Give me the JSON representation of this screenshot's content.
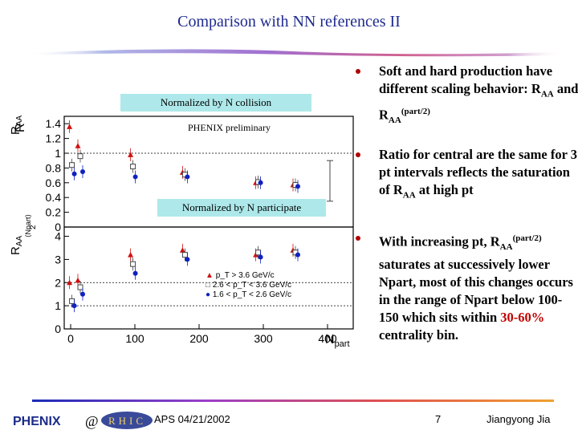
{
  "slide": {
    "title": "Comparison with NN references II",
    "footer_date": "APS 04/21/2002",
    "footer_page": "7",
    "footer_author": "Jiangyong Jia",
    "logo_text": "PHENIX",
    "logo_at": "@",
    "logo_rhic": "RHIC"
  },
  "bullets": [
    {
      "parts": [
        "Soft and hard production have different scaling behavior: R",
        "AA",
        " and R",
        "AA",
        "(part/2)"
      ]
    },
    {
      "parts": [
        "Ratio for central are the same for 3 pt intervals reflects the saturation of  R",
        "AA",
        " at high pt"
      ]
    },
    {
      "parts": [
        "With increasing pt, R",
        "AA",
        "(part/2)",
        " saturates at successively lower Npart, most of this changes occurs in the range of Npart below 100-150 which sits within ",
        "30-60%",
        " centrality bin."
      ]
    }
  ],
  "figure": {
    "label_top": "Normalized by N collision",
    "label_bottom": "Normalized by N participate",
    "preliminary": "PHENIX preliminary",
    "ylabel_top": "R",
    "ylabel_top_sub": "AA",
    "ylabel_bottom": "R",
    "ylabel_bottom_sub": "AA",
    "ylabel_bottom_frac_num": "⟨Npart⟩",
    "ylabel_bottom_frac_den": "2",
    "xlabel": "N",
    "xlabel_sub": "part",
    "legend": [
      {
        "text": "p_T > 3.6 GeV/c"
      },
      {
        "text": "2.6 < p_T < 3.6 GeV/c"
      },
      {
        "text": "1.6 < p_T < 2.6 GeV/c"
      }
    ],
    "colors": {
      "high": "#d01010",
      "mid": "#444444",
      "low": "#1020c0"
    }
  },
  "chart_data": [
    {
      "type": "scatter",
      "title": "",
      "xlabel": "N part",
      "ylabel": "RAA",
      "xlim": [
        -10,
        440
      ],
      "ylim": [
        0,
        1.5
      ],
      "yticks": [
        0,
        0.2,
        0.4,
        0.6,
        0.8,
        1,
        1.2,
        1.4
      ],
      "series": [
        {
          "name": "p_T > 3.6 GeV/c",
          "marker": "triangle",
          "x": [
            2,
            15,
            97,
            178,
            292,
            350
          ],
          "y": [
            1.36,
            1.1,
            0.98,
            0.74,
            0.6,
            0.57
          ]
        },
        {
          "name": "2.6 < p_T < 3.6 GeV/c",
          "marker": "square",
          "x": [
            2,
            15,
            97,
            178,
            292,
            350
          ],
          "y": [
            0.84,
            0.96,
            0.82,
            0.71,
            0.61,
            0.57
          ]
        },
        {
          "name": "1.6 < p_T < 2.6 GeV/c",
          "marker": "circle",
          "x": [
            2,
            15,
            97,
            178,
            292,
            350
          ],
          "y": [
            0.72,
            0.75,
            0.68,
            0.68,
            0.6,
            0.55
          ]
        }
      ]
    },
    {
      "type": "scatter",
      "title": "",
      "xlabel": "N part",
      "ylabel": "RAA(Npart/2)",
      "xlim": [
        -10,
        440
      ],
      "ylim": [
        0,
        4.4
      ],
      "xticks": [
        0,
        100,
        200,
        300,
        400
      ],
      "yticks": [
        0,
        1,
        2,
        3,
        4
      ],
      "series": [
        {
          "name": "p_T > 3.6 GeV/c",
          "marker": "triangle",
          "x": [
            2,
            15,
            97,
            178,
            292,
            350
          ],
          "y": [
            2.0,
            2.1,
            3.2,
            3.4,
            3.2,
            3.4
          ]
        },
        {
          "name": "2.6 < p_T < 3.6 GeV/c",
          "marker": "square",
          "x": [
            2,
            15,
            97,
            178,
            292,
            350
          ],
          "y": [
            1.2,
            1.8,
            2.8,
            3.2,
            3.3,
            3.3
          ]
        },
        {
          "name": "1.6 < p_T < 2.6 GeV/c",
          "marker": "circle",
          "x": [
            2,
            15,
            97,
            178,
            292,
            350
          ],
          "y": [
            1.0,
            1.5,
            2.4,
            3.0,
            3.1,
            3.2
          ]
        }
      ]
    }
  ]
}
